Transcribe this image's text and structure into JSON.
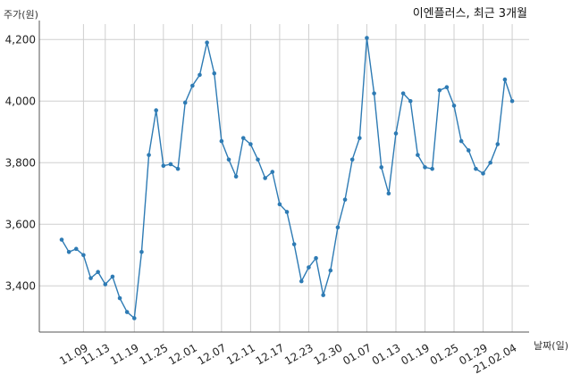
{
  "chart_data": {
    "type": "line",
    "title": "이엔플러스, 최근 3개월",
    "ylabel": "주가(원)",
    "xlabel": "날짜(일)",
    "ylim": [
      3250,
      4250
    ],
    "yticks": [
      "3,400",
      "3,600",
      "3,800",
      "4,000",
      "4,200"
    ],
    "ytick_values": [
      3400,
      3600,
      3800,
      4000,
      4200
    ],
    "xticks": [
      "11.09",
      "11.13",
      "11.19",
      "11.25",
      "12.01",
      "12.07",
      "12.11",
      "12.17",
      "12.23",
      "12.30",
      "01.07",
      "01.13",
      "01.19",
      "01.25",
      "01.29",
      "21.02.04"
    ],
    "xtick_index": [
      3,
      6,
      10,
      14,
      18,
      22,
      26,
      30,
      34,
      38,
      42,
      46,
      50,
      54,
      58,
      62
    ],
    "grid": true,
    "color": "#2e7bb4",
    "series": [
      {
        "values": [
          3550,
          3510,
          3520,
          3500,
          3425,
          3445,
          3405,
          3430,
          3360,
          3315,
          3295,
          3510,
          3825,
          3970,
          3790,
          3795,
          3780,
          3995,
          4050,
          4085,
          4190,
          4090,
          3870,
          3810,
          3755,
          3880,
          3860,
          3810,
          3750,
          3770,
          3665,
          3640,
          3535,
          3415,
          3460,
          3490,
          3370,
          3450,
          3590,
          3680,
          3810,
          3880,
          4205,
          4025,
          3785,
          3700,
          3895,
          4025,
          4000,
          3825,
          3785,
          3780,
          4035,
          4045,
          3985,
          3870,
          3840,
          3780,
          3765,
          3800,
          3860,
          4070,
          4000
        ]
      }
    ]
  }
}
